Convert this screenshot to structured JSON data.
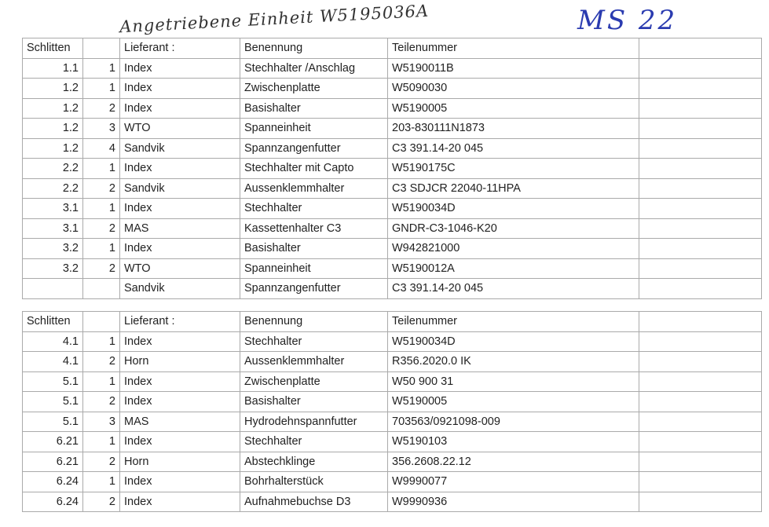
{
  "handwriting": {
    "title": "Angetriebene Einheit  W5195036A",
    "code": "MS 22"
  },
  "columns": [
    "Schlitten",
    "",
    "Lieferant :",
    "Benennung",
    "Teilenummer",
    ""
  ],
  "table1": [
    [
      "1.1",
      "1",
      "Index",
      "Stechhalter /Anschlag",
      "W5190011B",
      ""
    ],
    [
      "1.2",
      "1",
      "Index",
      "Zwischenplatte",
      "W5090030",
      ""
    ],
    [
      "1.2",
      "2",
      "Index",
      "Basishalter",
      "W5190005",
      ""
    ],
    [
      "1.2",
      "3",
      "WTO",
      "Spanneinheit",
      "203-830111N1873",
      ""
    ],
    [
      "1.2",
      "4",
      "Sandvik",
      "Spannzangenfutter",
      "C3 391.14-20 045",
      ""
    ],
    [
      "2.2",
      "1",
      "Index",
      "Stechhalter mit Capto",
      "W5190175C",
      ""
    ],
    [
      "2.2",
      "2",
      "Sandvik",
      "Aussenklemmhalter",
      "C3 SDJCR 22040-11HPA",
      ""
    ],
    [
      "3.1",
      "1",
      "Index",
      "Stechhalter",
      "W5190034D",
      ""
    ],
    [
      "3.1",
      "2",
      "MAS",
      "Kassettenhalter C3",
      "GNDR-C3-1046-K20",
      ""
    ],
    [
      "3.2",
      "1",
      "Index",
      "Basishalter",
      "W942821000",
      ""
    ],
    [
      "3.2",
      "2",
      "WTO",
      "Spanneinheit",
      "W5190012A",
      ""
    ],
    [
      "",
      "",
      "Sandvik",
      "Spannzangenfutter",
      "C3 391.14-20 045",
      ""
    ]
  ],
  "table2": [
    [
      "4.1",
      "1",
      "Index",
      "Stechhalter",
      "W5190034D",
      ""
    ],
    [
      "4.1",
      "2",
      "Horn",
      "Aussenklemmhalter",
      "R356.2020.0 IK",
      ""
    ],
    [
      "5.1",
      "1",
      "Index",
      "Zwischenplatte",
      "W50 900 31",
      ""
    ],
    [
      "5.1",
      "2",
      "Index",
      "Basishalter",
      "W5190005",
      ""
    ],
    [
      "5.1",
      "3",
      "MAS",
      "Hydrodehnspannfutter",
      "703563/0921098-009",
      ""
    ],
    [
      "6.21",
      "1",
      "Index",
      "Stechhalter",
      "W5190103",
      ""
    ],
    [
      "6.21",
      "2",
      "Horn",
      "Abstechklinge",
      "356.2608.22.12",
      ""
    ],
    [
      "6.24",
      "1",
      "Index",
      "Bohrhalterstück",
      "W9990077",
      ""
    ],
    [
      "6.24",
      "2",
      "Index",
      "Aufnahmebuchse D3",
      "W9990936",
      ""
    ]
  ]
}
